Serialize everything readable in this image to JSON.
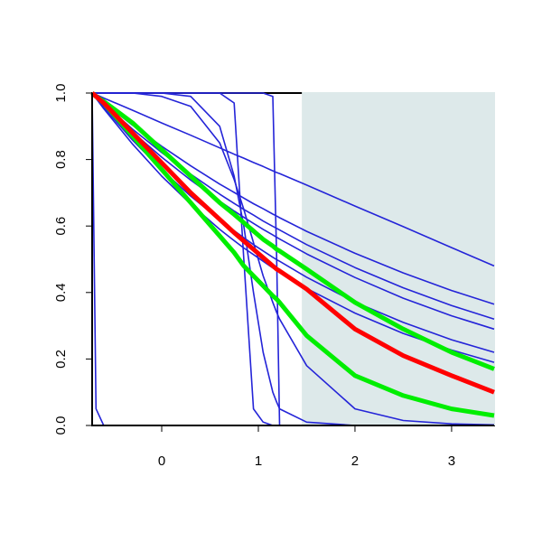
{
  "chart_data": {
    "type": "line",
    "x": [
      -0.72,
      -0.68,
      -0.6,
      -0.3,
      0,
      0.3,
      0.6,
      0.75,
      0.85,
      0.95,
      1.05,
      1.15,
      1.19,
      1.22,
      1.5,
      2,
      2.5,
      3,
      3.44
    ],
    "xlim": [
      -0.72,
      3.44
    ],
    "ylim": [
      0,
      1
    ],
    "xticks": [
      0,
      1,
      2,
      3
    ],
    "yticks": [
      {
        "value": 0,
        "label": "0.0"
      },
      0.2,
      0.4,
      0.6,
      0.8,
      {
        "value": 1,
        "label": "1.0"
      }
    ],
    "shade": {
      "xlim": [
        1.45,
        3.44
      ],
      "color": "#dde9ea"
    },
    "series": [
      {
        "color": "#2424d8",
        "linewidth": 1.6,
        "values": [
          1,
          0.05,
          0,
          0,
          0,
          0,
          0,
          0,
          0,
          0,
          0,
          0,
          0,
          0,
          0,
          0,
          0,
          0,
          0
        ]
      },
      {
        "color": "#2424d8",
        "linewidth": 1.6,
        "values": [
          1,
          1,
          1,
          1,
          1,
          1,
          1,
          1,
          1,
          1,
          1,
          0.99,
          0.5,
          0,
          0,
          0,
          0,
          0,
          0
        ]
      },
      {
        "color": "#2424d8",
        "linewidth": 1.6,
        "values": [
          1,
          1,
          1,
          1,
          1,
          1,
          1,
          0.97,
          0.5,
          0.05,
          0.01,
          0,
          0,
          0,
          0,
          0,
          0,
          0,
          0
        ]
      },
      {
        "color": "#2424d8",
        "linewidth": 1.6,
        "values": [
          1,
          1,
          1,
          1,
          1,
          0.99,
          0.9,
          0.75,
          0.6,
          0.4,
          0.22,
          0.1,
          0.07,
          0.05,
          0.01,
          0,
          0,
          0,
          0
        ]
      },
      {
        "color": "#2424d8",
        "linewidth": 1.6,
        "values": [
          1,
          1,
          1,
          1,
          0.99,
          0.96,
          0.85,
          0.74,
          0.65,
          0.55,
          0.45,
          0.37,
          0.34,
          0.32,
          0.18,
          0.05,
          0.015,
          0.005,
          0.002
        ]
      },
      {
        "color": "#2424d8",
        "linewidth": 1.6,
        "values": [
          1,
          0.995,
          0.985,
          0.948,
          0.91,
          0.873,
          0.835,
          0.816,
          0.804,
          0.791,
          0.779,
          0.766,
          0.761,
          0.758,
          0.723,
          0.66,
          0.598,
          0.535,
          0.48
        ]
      },
      {
        "color": "#2424d8",
        "linewidth": 1.6,
        "values": [
          1,
          0.99,
          0.971,
          0.903,
          0.84,
          0.781,
          0.726,
          0.701,
          0.684,
          0.667,
          0.652,
          0.636,
          0.63,
          0.625,
          0.584,
          0.518,
          0.459,
          0.406,
          0.365
        ]
      },
      {
        "color": "#2424d8",
        "linewidth": 1.6,
        "values": [
          1,
          0.989,
          0.968,
          0.891,
          0.821,
          0.756,
          0.696,
          0.668,
          0.65,
          0.633,
          0.615,
          0.599,
          0.593,
          0.588,
          0.544,
          0.475,
          0.414,
          0.361,
          0.32
        ]
      },
      {
        "color": "#2424d8",
        "linewidth": 1.6,
        "values": [
          1,
          0.988,
          0.965,
          0.882,
          0.807,
          0.738,
          0.675,
          0.645,
          0.626,
          0.608,
          0.59,
          0.573,
          0.566,
          0.561,
          0.516,
          0.445,
          0.383,
          0.33,
          0.29
        ]
      },
      {
        "color": "#2424d8",
        "linewidth": 1.6,
        "values": [
          1,
          0.986,
          0.957,
          0.858,
          0.769,
          0.69,
          0.619,
          0.586,
          0.565,
          0.544,
          0.525,
          0.506,
          0.499,
          0.494,
          0.446,
          0.371,
          0.31,
          0.258,
          0.22
        ]
      },
      {
        "color": "#2424d8",
        "linewidth": 1.6,
        "values": [
          1,
          0.984,
          0.953,
          0.846,
          0.75,
          0.666,
          0.59,
          0.556,
          0.534,
          0.514,
          0.494,
          0.474,
          0.467,
          0.461,
          0.412,
          0.338,
          0.277,
          0.227,
          0.19
        ]
      },
      {
        "color": "#00ee00",
        "linewidth": 5,
        "values": [
          1,
          0.99,
          0.975,
          0.91,
          0.83,
          0.75,
          0.67,
          0.635,
          0.61,
          0.585,
          0.56,
          0.54,
          0.53,
          0.525,
          0.47,
          0.37,
          0.29,
          0.22,
          0.17
        ]
      },
      {
        "color": "#00ee00",
        "linewidth": 5,
        "values": [
          1,
          0.99,
          0.97,
          0.87,
          0.77,
          0.67,
          0.57,
          0.52,
          0.48,
          0.45,
          0.42,
          0.39,
          0.38,
          0.37,
          0.27,
          0.15,
          0.09,
          0.05,
          0.03
        ]
      },
      {
        "color": "#ff0000",
        "linewidth": 5,
        "values": [
          1,
          0.99,
          0.97,
          0.88,
          0.79,
          0.7,
          0.62,
          0.58,
          0.555,
          0.53,
          0.505,
          0.48,
          0.47,
          0.465,
          0.41,
          0.29,
          0.21,
          0.15,
          0.1
        ]
      }
    ]
  }
}
